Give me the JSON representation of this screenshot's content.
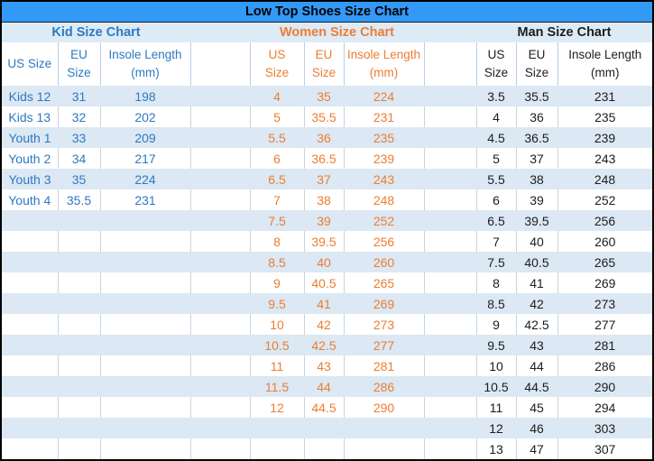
{
  "title": "Low Top Shoes Size Chart",
  "colors": {
    "title_bar_bg": "#3399F7",
    "band_row_bg": "#DCE8F3",
    "section_row_bg": "#DDEBF7",
    "kid_text": "#2E79C1",
    "women_text": "#ED7D31",
    "man_text": "#1D1D1D",
    "outer_border": "#000000"
  },
  "columns": {
    "kid": {
      "us": "US Size",
      "eu": "EU\nSize",
      "insole": "Insole Length\n(mm)"
    },
    "women": {
      "us": "US\nSize",
      "eu": "EU\nSize",
      "insole": "Insole Length\n(mm)"
    },
    "man": {
      "us": "US\nSize",
      "eu": "EU\nSize",
      "insole": "Insole Length\n(mm)"
    }
  },
  "chart_data": {
    "type": "table",
    "title": "Low Top Shoes Size Chart",
    "tables": [
      {
        "name": "Kid Size Chart",
        "columns": [
          "US Size",
          "EU Size",
          "Insole Length (mm)"
        ],
        "rows": [
          [
            "Kids 12",
            "31",
            "198"
          ],
          [
            "Kids 13",
            "32",
            "202"
          ],
          [
            "Youth 1",
            "33",
            "209"
          ],
          [
            "Youth 2",
            "34",
            "217"
          ],
          [
            "Youth 3",
            "35",
            "224"
          ],
          [
            "Youth 4",
            "35.5",
            "231"
          ]
        ]
      },
      {
        "name": "Women Size Chart",
        "columns": [
          "US Size",
          "EU Size",
          "Insole Length (mm)"
        ],
        "rows": [
          [
            "4",
            "35",
            "224"
          ],
          [
            "5",
            "35.5",
            "231"
          ],
          [
            "5.5",
            "36",
            "235"
          ],
          [
            "6",
            "36.5",
            "239"
          ],
          [
            "6.5",
            "37",
            "243"
          ],
          [
            "7",
            "38",
            "248"
          ],
          [
            "7.5",
            "39",
            "252"
          ],
          [
            "8",
            "39.5",
            "256"
          ],
          [
            "8.5",
            "40",
            "260"
          ],
          [
            "9",
            "40.5",
            "265"
          ],
          [
            "9.5",
            "41",
            "269"
          ],
          [
            "10",
            "42",
            "273"
          ],
          [
            "10.5",
            "42.5",
            "277"
          ],
          [
            "11",
            "43",
            "281"
          ],
          [
            "11.5",
            "44",
            "286"
          ],
          [
            "12",
            "44.5",
            "290"
          ]
        ]
      },
      {
        "name": "Man Size Chart",
        "columns": [
          "US Size",
          "EU Size",
          "Insole Length (mm)"
        ],
        "rows": [
          [
            "3.5",
            "35.5",
            "231"
          ],
          [
            "4",
            "36",
            "235"
          ],
          [
            "4.5",
            "36.5",
            "239"
          ],
          [
            "5",
            "37",
            "243"
          ],
          [
            "5.5",
            "38",
            "248"
          ],
          [
            "6",
            "39",
            "252"
          ],
          [
            "6.5",
            "39.5",
            "256"
          ],
          [
            "7",
            "40",
            "260"
          ],
          [
            "7.5",
            "40.5",
            "265"
          ],
          [
            "8",
            "41",
            "269"
          ],
          [
            "8.5",
            "42",
            "273"
          ],
          [
            "9",
            "42.5",
            "277"
          ],
          [
            "9.5",
            "43",
            "281"
          ],
          [
            "10",
            "44",
            "286"
          ],
          [
            "10.5",
            "44.5",
            "290"
          ],
          [
            "11",
            "45",
            "294"
          ],
          [
            "12",
            "46",
            "303"
          ],
          [
            "13",
            "47",
            "307"
          ]
        ]
      }
    ]
  }
}
